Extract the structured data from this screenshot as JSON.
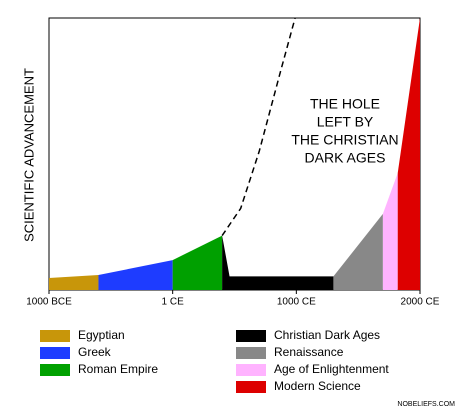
{
  "chart_data": {
    "type": "area",
    "ylabel": "SCIENTIFIC ADVANCEMENT",
    "xlim": [
      -1000,
      2000
    ],
    "ylim": [
      0,
      100
    ],
    "xticks": [
      {
        "value": -1000,
        "label": "1000 BCE"
      },
      {
        "value": 0,
        "label": "1 CE"
      },
      {
        "value": 1000,
        "label": "1000 CE"
      },
      {
        "value": 2000,
        "label": "2000 CE"
      }
    ],
    "series": [
      {
        "name": "Egyptian",
        "color": "#c8960a",
        "x": [
          -1000,
          -600
        ],
        "values": [
          4.4,
          5.5
        ]
      },
      {
        "name": "Greek",
        "color": "#1e3cff",
        "x": [
          -600,
          0
        ],
        "values": [
          5.5,
          11
        ]
      },
      {
        "name": "Roman Empire",
        "color": "#00a000",
        "x": [
          0,
          400
        ],
        "values": [
          11,
          20
        ]
      },
      {
        "name": "Christian Dark Ages",
        "color": "#000000",
        "x": [
          400,
          460,
          1300
        ],
        "values": [
          20,
          5,
          5
        ]
      },
      {
        "name": "Renaissance",
        "color": "#888888",
        "x": [
          1300,
          1700
        ],
        "values": [
          5,
          28
        ]
      },
      {
        "name": "Age of Enlightenment",
        "color": "#ffb3ff",
        "x": [
          1700,
          1820
        ],
        "values": [
          28,
          43
        ]
      },
      {
        "name": "Modern Science",
        "color": "#dd0000",
        "x": [
          1820,
          2000
        ],
        "values": [
          43,
          100
        ]
      }
    ],
    "dashed_line": {
      "x": [
        400,
        550,
        700,
        870,
        990
      ],
      "values": [
        20,
        30,
        51,
        80,
        100
      ]
    },
    "annotation": [
      "THE HOLE",
      "LEFT BY",
      "THE CHRISTIAN",
      "DARK AGES"
    ],
    "watermark": "NOBELIEFS.COM"
  }
}
